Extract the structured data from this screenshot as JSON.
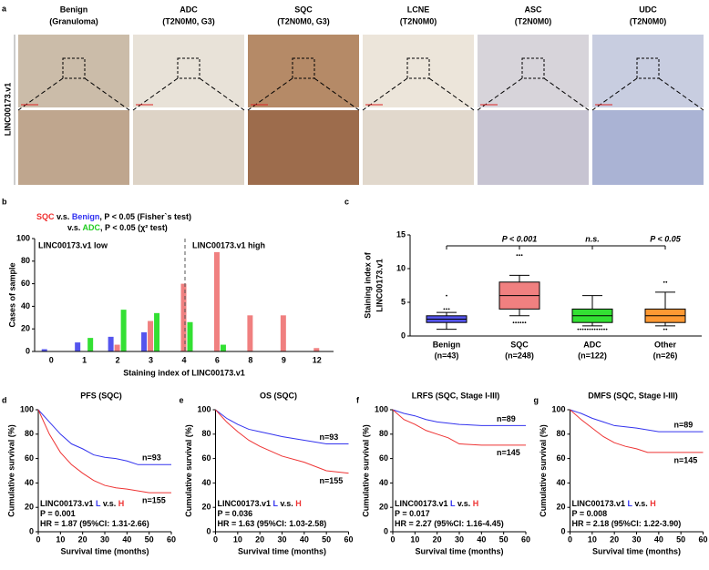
{
  "panel_labels": [
    "a",
    "b",
    "c",
    "d",
    "e",
    "f",
    "g"
  ],
  "figure_a": {
    "row_label": "LINC00173.v1",
    "columns": [
      [
        "Benign",
        "(Granuloma)"
      ],
      [
        "ADC",
        "(T2N0M0, G3)"
      ],
      [
        "SQC",
        "(T2N0M0, G3)"
      ],
      [
        "LCNE",
        "(T2N0M0)"
      ],
      [
        "ASC",
        "(T2N0M0)"
      ],
      [
        "UDC",
        "(T2N0M0)"
      ]
    ]
  },
  "chart_data": [
    {
      "type": "bar",
      "annotations": [
        [
          {
            "text": "SQC",
            "color": "#f03030"
          },
          {
            "text": " v.s. "
          },
          {
            "text": "Benign",
            "color": "#3030f0"
          },
          {
            "text": ", P < 0.05 (Fisher`s test)"
          }
        ],
        [
          {
            "text": "v.s. "
          },
          {
            "text": "ADC",
            "color": "#22cc22"
          },
          {
            "text": ", P < 0.05 (χ² test)"
          }
        ]
      ],
      "region_labels": [
        "LINC00173.v1 low",
        "LINC00173.v1 high"
      ],
      "y_label": "Cases of sample",
      "x_label": "Staining index of LINC00173.v1",
      "categories": [
        "0",
        "1",
        "2",
        "3",
        "4",
        "6",
        "8",
        "9",
        "12"
      ],
      "series": [
        {
          "name": "Benign",
          "color": "#5555ee",
          "values": [
            2,
            8,
            13,
            17,
            0,
            0,
            0,
            0,
            0
          ]
        },
        {
          "name": "SQC",
          "color": "#f08080",
          "values": [
            0,
            0,
            6,
            27,
            60,
            88,
            32,
            32,
            3
          ]
        },
        {
          "name": "ADC",
          "color": "#33e033",
          "values": [
            0,
            12,
            37,
            34,
            26,
            6,
            0,
            0,
            0
          ]
        }
      ],
      "ylim": [
        0,
        100
      ],
      "yticks": [
        0,
        20,
        40,
        60,
        80,
        100
      ]
    },
    {
      "type": "box",
      "y_label": [
        "Staining index of",
        "LINC00173.v1"
      ],
      "categories": [
        [
          "Benign",
          "(n=43)"
        ],
        [
          "SQC",
          "(n=248)"
        ],
        [
          "ADC",
          "(n=122)"
        ],
        [
          "Other",
          "(n=26)"
        ]
      ],
      "comparisons": [
        "P < 0.001",
        "n.s.",
        "P < 0.05"
      ],
      "boxes": [
        {
          "color": "#5555ee",
          "min": 1,
          "q1": 2,
          "median": 2.5,
          "q3": 3,
          "max": 3.5,
          "outliers": [
            4,
            4,
            4,
            6
          ]
        },
        {
          "color": "#f08080",
          "min": 3,
          "q1": 4,
          "median": 6,
          "q3": 8,
          "max": 9,
          "outliers": [
            12,
            12,
            12,
            2,
            2,
            2,
            2,
            2,
            2
          ]
        },
        {
          "color": "#33e033",
          "min": 1.5,
          "q1": 2,
          "median": 3,
          "q3": 4,
          "max": 6,
          "outliers": [
            1,
            1,
            1,
            1,
            1,
            1,
            1,
            1,
            1,
            1,
            1,
            1,
            1
          ]
        },
        {
          "color": "#ff9933",
          "min": 1.5,
          "q1": 2,
          "median": 3,
          "q3": 4,
          "max": 6.5,
          "outliers": [
            8,
            8,
            1,
            1
          ]
        }
      ],
      "ylim": [
        0,
        15
      ],
      "yticks": [
        0,
        5,
        10,
        15
      ]
    },
    {
      "type": "km",
      "title": "PFS (SQC)",
      "y_label": "Cumulative survival (%)",
      "x_label": "Survival time (months)",
      "annotations": [
        [
          {
            "text": "LINC00173.v1 "
          },
          {
            "text": "L",
            "color": "#3333ee"
          },
          {
            "text": " v.s. "
          },
          {
            "text": "H",
            "color": "#ee3333"
          }
        ],
        [
          {
            "text": "P = 0.001"
          }
        ],
        [
          {
            "text": "HR = 1.87 (95%CI: 1.31-2.66)"
          }
        ]
      ],
      "series": [
        {
          "name": "n=93",
          "color": "#3333ee",
          "x": [
            0,
            5,
            10,
            15,
            20,
            25,
            30,
            35,
            40,
            45,
            60
          ],
          "values": [
            100,
            90,
            80,
            72,
            68,
            63,
            61,
            60,
            58,
            55,
            55
          ]
        },
        {
          "name": "n=155",
          "color": "#ee3333",
          "x": [
            0,
            5,
            10,
            15,
            20,
            25,
            30,
            35,
            40,
            50,
            60
          ],
          "values": [
            100,
            80,
            65,
            55,
            48,
            42,
            38,
            36,
            35,
            32,
            32
          ]
        }
      ],
      "xlim": [
        0,
        60
      ],
      "xticks": [
        0,
        10,
        20,
        30,
        40,
        50,
        60
      ],
      "ylim": [
        0,
        100
      ],
      "yticks": [
        0,
        20,
        40,
        60,
        80,
        100
      ]
    },
    {
      "type": "km",
      "title": "OS (SQC)",
      "y_label": "Cumulative survival (%)",
      "x_label": "Survival time (months)",
      "annotations": [
        [
          {
            "text": "LINC00173.v1 "
          },
          {
            "text": "L",
            "color": "#3333ee"
          },
          {
            "text": " v.s. "
          },
          {
            "text": "H",
            "color": "#ee3333"
          }
        ],
        [
          {
            "text": "P = 0.036"
          }
        ],
        [
          {
            "text": "HR = 1.63 (95%CI: 1.03-2.58)"
          }
        ]
      ],
      "series": [
        {
          "name": "n=93",
          "color": "#3333ee",
          "x": [
            0,
            5,
            10,
            15,
            20,
            25,
            30,
            40,
            50,
            60
          ],
          "values": [
            100,
            93,
            88,
            84,
            82,
            80,
            78,
            75,
            72,
            72
          ]
        },
        {
          "name": "n=155",
          "color": "#ee3333",
          "x": [
            0,
            5,
            10,
            15,
            20,
            25,
            30,
            40,
            50,
            60
          ],
          "values": [
            100,
            90,
            82,
            75,
            70,
            66,
            62,
            57,
            50,
            48
          ]
        }
      ],
      "xlim": [
        0,
        60
      ],
      "xticks": [
        0,
        10,
        20,
        30,
        40,
        50,
        60
      ],
      "ylim": [
        0,
        100
      ],
      "yticks": [
        0,
        20,
        40,
        60,
        80,
        100
      ]
    },
    {
      "type": "km",
      "title": "LRFS (SQC, Stage I-III)",
      "y_label": "Cumulative survival (%)",
      "x_label": "Survival time (months)",
      "annotations": [
        [
          {
            "text": "LINC00173.v1 "
          },
          {
            "text": "L",
            "color": "#3333ee"
          },
          {
            "text": " v.s. "
          },
          {
            "text": "H",
            "color": "#ee3333"
          }
        ],
        [
          {
            "text": "P = 0.017"
          }
        ],
        [
          {
            "text": "HR = 2.27 (95%CI: 1.16-4.45)"
          }
        ]
      ],
      "series": [
        {
          "name": "n=89",
          "color": "#3333ee",
          "x": [
            0,
            5,
            10,
            15,
            20,
            30,
            40,
            60
          ],
          "values": [
            100,
            97,
            95,
            92,
            90,
            88,
            87,
            87
          ]
        },
        {
          "name": "n=145",
          "color": "#ee3333",
          "x": [
            0,
            5,
            10,
            15,
            20,
            25,
            30,
            40,
            60
          ],
          "values": [
            100,
            92,
            88,
            83,
            80,
            77,
            72,
            71,
            71
          ]
        }
      ],
      "xlim": [
        0,
        60
      ],
      "xticks": [
        0,
        10,
        20,
        30,
        40,
        50,
        60
      ],
      "ylim": [
        0,
        100
      ],
      "yticks": [
        0,
        20,
        40,
        60,
        80,
        100
      ]
    },
    {
      "type": "km",
      "title": "DMFS (SQC, Stage I-III)",
      "y_label": "Cumulative survival (%)",
      "x_label": "Survival time (months)",
      "annotations": [
        [
          {
            "text": "LINC00173.v1 "
          },
          {
            "text": "L",
            "color": "#3333ee"
          },
          {
            "text": " v.s. "
          },
          {
            "text": "H",
            "color": "#ee3333"
          }
        ],
        [
          {
            "text": "P = 0.008"
          }
        ],
        [
          {
            "text": "HR = 2.18 (95%CI: 1.22-3.90)"
          }
        ]
      ],
      "series": [
        {
          "name": "n=89",
          "color": "#3333ee",
          "x": [
            0,
            5,
            10,
            15,
            20,
            30,
            40,
            60
          ],
          "values": [
            100,
            97,
            93,
            90,
            87,
            85,
            82,
            82
          ]
        },
        {
          "name": "n=145",
          "color": "#ee3333",
          "x": [
            0,
            5,
            10,
            15,
            20,
            25,
            30,
            35,
            60
          ],
          "values": [
            100,
            92,
            85,
            78,
            73,
            70,
            68,
            65,
            65
          ]
        }
      ],
      "xlim": [
        0,
        60
      ],
      "xticks": [
        0,
        10,
        20,
        30,
        40,
        50,
        60
      ],
      "ylim": [
        0,
        100
      ],
      "yticks": [
        0,
        20,
        40,
        60,
        80,
        100
      ]
    }
  ]
}
